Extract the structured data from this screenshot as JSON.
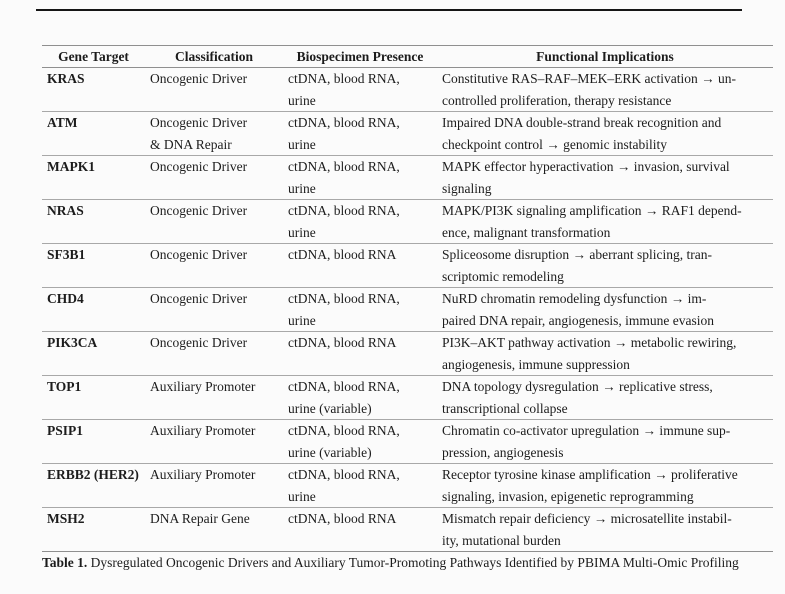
{
  "colors": {
    "background": "#fbfbfb",
    "text": "#1c1c1c",
    "top_rule": "#161616",
    "header_rule": "#8f8f8f",
    "row_rule": "#a8a8a8"
  },
  "table": {
    "headers": [
      "Gene Target",
      "Classification",
      "Biospecimen Presence",
      "Functional Implications"
    ],
    "rows": [
      {
        "gene": "KRAS",
        "classification": "Oncogenic Driver",
        "biospecimen": "ctDNA, blood RNA,\nurine",
        "implications": "Constitutive RAS–RAF–MEK–ERK activation → un-\ncontrolled proliferation, therapy resistance"
      },
      {
        "gene": "ATM",
        "classification": "Oncogenic Driver\n& DNA Repair",
        "biospecimen": "ctDNA, blood RNA,\nurine",
        "implications": "Impaired DNA double-strand break recognition and\ncheckpoint control → genomic instability"
      },
      {
        "gene": "MAPK1",
        "classification": "Oncogenic Driver",
        "biospecimen": "ctDNA, blood RNA,\nurine",
        "implications": "MAPK effector hyperactivation → invasion, survival\nsignaling"
      },
      {
        "gene": "NRAS",
        "classification": "Oncogenic Driver",
        "biospecimen": "ctDNA, blood RNA,\nurine",
        "implications": "MAPK/PI3K signaling amplification → RAF1 depend-\nence, malignant transformation"
      },
      {
        "gene": "SF3B1",
        "classification": "Oncogenic Driver",
        "biospecimen": "ctDNA, blood RNA",
        "implications": "Spliceosome disruption → aberrant splicing, tran-\nscriptomic remodeling"
      },
      {
        "gene": "CHD4",
        "classification": "Oncogenic Driver",
        "biospecimen": "ctDNA, blood RNA,\nurine",
        "implications": "NuRD chromatin remodeling dysfunction → im-\npaired DNA repair, angiogenesis, immune evasion"
      },
      {
        "gene": "PIK3CA",
        "classification": "Oncogenic Driver",
        "biospecimen": "ctDNA, blood RNA",
        "implications": "PI3K–AKT pathway activation → metabolic rewiring,\nangiogenesis, immune suppression"
      },
      {
        "gene": "TOP1",
        "classification": "Auxiliary Promoter",
        "biospecimen": "ctDNA, blood RNA,\nurine (variable)",
        "implications": "DNA topology dysregulation → replicative stress,\ntranscriptional collapse"
      },
      {
        "gene": "PSIP1",
        "classification": "Auxiliary Promoter",
        "biospecimen": "ctDNA, blood RNA,\nurine (variable)",
        "implications": "Chromatin co-activator upregulation → immune sup-\npression, angiogenesis"
      },
      {
        "gene": "ERBB2 (HER2)",
        "classification": "Auxiliary Promoter",
        "biospecimen": "ctDNA, blood RNA,\nurine",
        "implications": "Receptor tyrosine kinase amplification → proliferative\nsignaling, invasion, epigenetic reprogramming"
      },
      {
        "gene": "MSH2",
        "classification": "DNA Repair Gene",
        "biospecimen": "ctDNA, blood RNA",
        "implications": "Mismatch repair deficiency → microsatellite instabil-\nity, mutational burden"
      }
    ]
  },
  "caption": {
    "label": "Table 1.",
    "text": "Dysregulated Oncogenic Drivers and Auxiliary Tumor-Promoting Pathways Identified by PBIMA Multi-Omic Profiling"
  }
}
